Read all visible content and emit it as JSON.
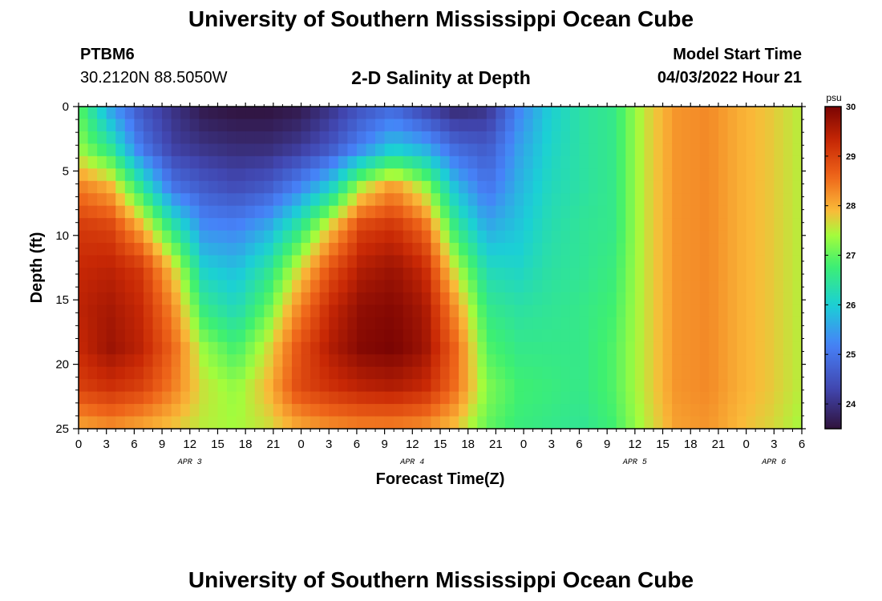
{
  "header": {
    "title": "University of Southern Mississippi Ocean Cube",
    "station_id": "PTBM6",
    "station_coords": "30.2120N  88.5050W",
    "plot_title": "2-D Salinity at Depth",
    "model_start_label": "Model Start Time",
    "model_start_value": "04/03/2022 Hour 21"
  },
  "footer": {
    "title": "University of Southern Mississippi Ocean Cube"
  },
  "colors": {
    "background": "#ffffff",
    "axis": "#000000"
  },
  "chart_data": {
    "type": "heatmap",
    "title": "2-D Salinity at Depth",
    "xlabel": "Forecast Time(Z)",
    "ylabel": "Depth (ft)",
    "x_start_hours_since_apr3_00": 0,
    "x_end_hours_since_apr3_00": 78,
    "x_tick_step_hours": 3,
    "x_tick_labels": [
      "0",
      "3",
      "6",
      "9",
      "12",
      "15",
      "18",
      "21",
      "0",
      "3",
      "6",
      "9",
      "12",
      "15",
      "18",
      "21",
      "0",
      "3",
      "6",
      "9",
      "12",
      "15",
      "18",
      "21",
      "0",
      "3",
      "6"
    ],
    "date_labels": [
      {
        "label": "APR 3",
        "hour": 12
      },
      {
        "label": "APR 4",
        "hour": 36
      },
      {
        "label": "APR 5",
        "hour": 60
      },
      {
        "label": "APR 6",
        "hour": 75
      }
    ],
    "ylim": [
      0,
      25
    ],
    "y_ticks": [
      0,
      5,
      10,
      15,
      20,
      25
    ],
    "y_inverted": true,
    "colorbar": {
      "unit": "psu",
      "min": 23.5,
      "max": 30,
      "ticks": [
        24,
        25,
        26,
        27,
        28,
        29,
        30
      ]
    },
    "grid": false,
    "salinity_field_psu": [
      [
        27.0,
        25.5,
        24.5,
        24.0,
        23.6,
        23.5,
        23.5,
        23.6,
        24.0,
        24.5,
        24.8,
        24.2,
        23.8,
        24.0,
        25.2,
        26.0,
        26.4,
        26.6,
        27.6,
        28.2,
        28.3,
        28.0,
        27.8,
        27.5
      ],
      [
        27.3,
        26.5,
        25.0,
        24.2,
        24.0,
        23.9,
        23.9,
        24.1,
        24.5,
        25.2,
        25.9,
        25.6,
        24.8,
        24.6,
        25.5,
        26.1,
        26.4,
        26.6,
        27.6,
        28.2,
        28.3,
        28.0,
        27.8,
        27.5
      ],
      [
        28.4,
        28.0,
        26.5,
        25.0,
        24.6,
        24.4,
        24.6,
        25.2,
        26.0,
        27.5,
        28.2,
        27.4,
        25.8,
        25.0,
        25.7,
        26.2,
        26.4,
        26.6,
        27.6,
        28.2,
        28.3,
        28.0,
        27.8,
        27.5
      ],
      [
        29.1,
        29.0,
        28.0,
        26.5,
        25.3,
        25.2,
        25.6,
        26.5,
        27.8,
        29.0,
        29.2,
        28.6,
        26.6,
        25.6,
        25.9,
        26.3,
        26.5,
        26.6,
        27.6,
        28.2,
        28.3,
        28.0,
        27.8,
        27.5
      ],
      [
        29.3,
        29.4,
        29.1,
        27.8,
        26.0,
        25.8,
        26.4,
        27.6,
        28.8,
        29.5,
        29.7,
        29.3,
        27.5,
        26.2,
        26.1,
        26.4,
        26.5,
        26.7,
        27.6,
        28.2,
        28.3,
        28.0,
        27.8,
        27.5
      ],
      [
        29.4,
        29.6,
        29.3,
        28.3,
        26.6,
        26.2,
        27.0,
        28.3,
        29.3,
        29.8,
        29.9,
        29.6,
        28.2,
        26.6,
        26.4,
        26.5,
        26.6,
        26.8,
        27.6,
        28.2,
        28.3,
        28.0,
        27.8,
        27.5
      ],
      [
        29.3,
        29.7,
        29.4,
        28.6,
        27.3,
        26.8,
        27.6,
        28.8,
        29.5,
        29.9,
        30.0,
        29.7,
        28.6,
        26.9,
        26.6,
        26.6,
        26.6,
        26.9,
        27.6,
        28.2,
        28.3,
        28.0,
        27.8,
        27.5
      ],
      [
        29.0,
        29.2,
        29.0,
        28.4,
        27.6,
        27.3,
        27.9,
        28.9,
        29.2,
        29.4,
        29.5,
        29.3,
        28.5,
        27.2,
        26.8,
        26.7,
        26.6,
        26.9,
        27.6,
        28.2,
        28.3,
        28.0,
        27.8,
        27.5
      ],
      [
        28.0,
        28.2,
        28.0,
        27.8,
        27.5,
        27.4,
        27.6,
        28.0,
        28.2,
        28.3,
        28.3,
        28.2,
        27.8,
        27.0,
        26.7,
        26.6,
        26.5,
        26.8,
        27.5,
        28.1,
        28.2,
        27.9,
        27.7,
        27.4
      ]
    ]
  }
}
